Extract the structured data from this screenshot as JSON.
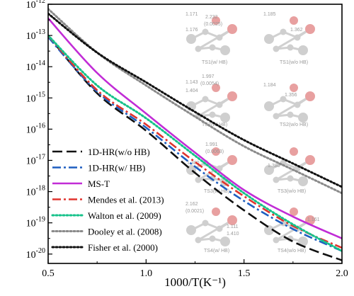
{
  "chart_data": {
    "type": "line",
    "xlabel": "1000/T(K⁻¹)",
    "ylabel": "",
    "xlim": [
      0.5,
      2.0
    ],
    "ylim_log10": [
      -20.3,
      -12
    ],
    "yscale": "log",
    "x_ticks": [
      {
        "value": 0.5,
        "label": "0.5"
      },
      {
        "value": 1.0,
        "label": "1.0"
      },
      {
        "value": 1.5,
        "label": "1.5"
      },
      {
        "value": 2.0,
        "label": "2.0"
      }
    ],
    "y_ticks": [
      {
        "exp": -20,
        "base": "10",
        "sup": "-20"
      },
      {
        "exp": -19,
        "base": "10",
        "sup": "-19"
      },
      {
        "exp": -18,
        "base": "10",
        "sup": "-18"
      },
      {
        "exp": -17,
        "base": "10",
        "sup": "-17"
      },
      {
        "exp": -16,
        "base": "10",
        "sup": "-16"
      },
      {
        "exp": -15,
        "base": "10",
        "sup": "-15"
      },
      {
        "exp": -14,
        "base": "10",
        "sup": "-14"
      },
      {
        "exp": -13,
        "base": "10",
        "sup": "-13"
      },
      {
        "exp": -12,
        "base": "10",
        "sup": "-12"
      }
    ],
    "legend_position": "bottom-left",
    "series": [
      {
        "name": "1D-HR(w/o HB)",
        "color": "#111111",
        "dash": "long-dash",
        "x": [
          0.5,
          0.75,
          1.0,
          1.25,
          1.5,
          1.75,
          2.0
        ],
        "log10_y": [
          -13.0,
          -14.85,
          -16.05,
          -17.4,
          -18.6,
          -19.6,
          -20.2
        ]
      },
      {
        "name": "1D-HR(w/ HB)",
        "color": "#1f5fc0",
        "dash": "dash-dot",
        "x": [
          0.5,
          0.75,
          1.0,
          1.25,
          1.5,
          1.75,
          2.0
        ],
        "log10_y": [
          -13.05,
          -14.8,
          -15.95,
          -17.2,
          -18.3,
          -19.2,
          -19.9
        ]
      },
      {
        "name": "MS-T",
        "color": "#c12cd6",
        "dash": "solid",
        "x": [
          0.5,
          0.75,
          1.0,
          1.25,
          1.5,
          1.75,
          2.0
        ],
        "log10_y": [
          -12.45,
          -14.2,
          -15.5,
          -16.75,
          -17.95,
          -18.8,
          -19.5
        ]
      },
      {
        "name": "Mendes et al. (2013)",
        "color": "#e0342e",
        "dash": "dash-dot",
        "x": [
          0.5,
          0.75,
          1.0,
          1.25,
          1.5,
          1.75,
          2.0
        ],
        "log10_y": [
          -13.0,
          -14.75,
          -15.85,
          -17.05,
          -18.15,
          -19.1,
          -19.8
        ]
      },
      {
        "name": "Walton et al. (2009)",
        "color": "#16c28a",
        "dash": "dotted",
        "x": [
          0.5,
          0.75,
          1.0,
          1.25,
          1.5,
          1.75,
          2.0
        ],
        "log10_y": [
          -13.0,
          -14.6,
          -15.65,
          -16.85,
          -18.05,
          -19.05,
          -19.9
        ]
      },
      {
        "name": "Dooley et al. (2008)",
        "color": "#8a8a8a",
        "dash": "dotted",
        "x": [
          0.5,
          0.75,
          1.0,
          1.25,
          1.5,
          1.75,
          2.0
        ],
        "log10_y": [
          -12.15,
          -13.55,
          -14.6,
          -15.6,
          -16.55,
          -17.3,
          -18.05
        ]
      },
      {
        "name": "Fisher et al. (2000)",
        "color": "#111111",
        "dash": "dotted",
        "x": [
          0.5,
          0.75,
          1.0,
          1.25,
          1.5,
          1.75,
          2.0
        ],
        "log10_y": [
          -12.3,
          -13.55,
          -14.5,
          -15.45,
          -16.35,
          -17.1,
          -17.85
        ]
      }
    ],
    "inset_annotations": [
      {
        "text": "1.171"
      },
      {
        "text": "2.232"
      },
      {
        "text": "(0.0025)"
      },
      {
        "text": "1.176"
      },
      {
        "text": "TS1(w/ HB)"
      },
      {
        "text": "1.185"
      },
      {
        "text": "1.362"
      },
      {
        "text": "TS1(w/o HB)"
      },
      {
        "text": "1.143"
      },
      {
        "text": "1.997"
      },
      {
        "text": "(0.0054)"
      },
      {
        "text": "1.404"
      },
      {
        "text": "TS2(w/ HB)"
      },
      {
        "text": "1.184"
      },
      {
        "text": "1.356"
      },
      {
        "text": "TS2(w/o HB)"
      },
      {
        "text": "1.991"
      },
      {
        "text": "(0.0063)"
      },
      {
        "text": "1.380"
      },
      {
        "text": "1.380"
      },
      {
        "text": "TS3(w/ HB)"
      },
      {
        "text": "TS3(w/o HB)"
      },
      {
        "text": "2.162"
      },
      {
        "text": "(0.0021)"
      },
      {
        "text": "1.111"
      },
      {
        "text": "1.410"
      },
      {
        "text": "1.161"
      },
      {
        "text": "TS4(w/ HB)"
      },
      {
        "text": "TS4(w/o HB)"
      }
    ]
  }
}
